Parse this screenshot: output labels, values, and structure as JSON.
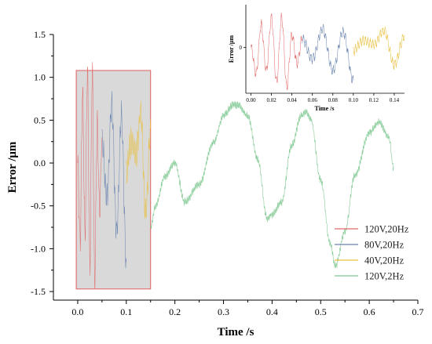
{
  "chart_data": [
    {
      "type": "line",
      "title": "",
      "xlabel": "Time  /s",
      "ylabel": "Error  /μm",
      "xlim": [
        -0.05,
        0.7
      ],
      "ylim": [
        -1.6,
        1.5
      ],
      "x_ticks": [
        0.0,
        0.1,
        0.2,
        0.3,
        0.4,
        0.5,
        0.6,
        0.7
      ],
      "x_tick_labels": [
        "0.0",
        "0.1",
        "0.2",
        "0.3",
        "0.4",
        "0.5",
        "0.6",
        "0.7"
      ],
      "y_ticks": [
        1.5,
        1.0,
        0.5,
        0.0,
        -0.5,
        -1.0,
        -1.5
      ],
      "y_tick_labels": [
        "1.5",
        "1.0",
        "0.5",
        "0.0",
        "-0.5",
        "-1.0",
        "-1.5"
      ],
      "grid": false,
      "legend_position": "bottom-right",
      "highlight_box": {
        "x_range": [
          -0.003,
          0.15
        ],
        "y_range": [
          -1.47,
          1.08
        ],
        "fill": "#d9d9d9",
        "stroke": "#e06060"
      },
      "series": [
        {
          "name": "120V,20Hz",
          "color": "#e06a6a",
          "x": [
            0.0,
            0.005,
            0.01,
            0.015,
            0.02,
            0.025,
            0.03,
            0.035,
            0.04,
            0.045,
            0.05
          ],
          "y": [
            0.0,
            -0.9,
            0.8,
            -0.8,
            1.05,
            -1.2,
            1.05,
            -1.35,
            0.45,
            -0.55,
            0.3
          ]
        },
        {
          "name": "80V,20Hz",
          "color": "#6a85b0",
          "x": [
            0.05,
            0.06,
            0.07,
            0.08,
            0.09,
            0.1
          ],
          "y": [
            0.3,
            -0.4,
            0.65,
            -0.8,
            0.55,
            -1.15
          ]
        },
        {
          "name": "40V,20Hz",
          "color": "#e8c040",
          "x": [
            0.1,
            0.11,
            0.12,
            0.13,
            0.14,
            0.15
          ],
          "y": [
            -0.1,
            0.25,
            0.1,
            0.6,
            -0.6,
            0.4
          ]
        },
        {
          "name": "120V,2Hz",
          "color": "#7ec890",
          "x": [
            0.15,
            0.16,
            0.18,
            0.2,
            0.22,
            0.25,
            0.28,
            0.3,
            0.32,
            0.33,
            0.35,
            0.37,
            0.39,
            0.4,
            0.42,
            0.44,
            0.46,
            0.47,
            0.48,
            0.5,
            0.52,
            0.53,
            0.55,
            0.57,
            0.6,
            0.62,
            0.64,
            0.65
          ],
          "y": [
            -0.75,
            -0.5,
            -0.15,
            0.0,
            -0.45,
            -0.25,
            0.25,
            0.55,
            0.68,
            0.68,
            0.55,
            0.05,
            -0.65,
            -0.6,
            -0.45,
            0.2,
            0.55,
            0.6,
            0.5,
            -0.2,
            -0.95,
            -1.2,
            -0.8,
            -0.15,
            0.35,
            0.48,
            0.3,
            -0.05
          ]
        }
      ]
    },
    {
      "type": "line",
      "title": "",
      "xlabel": "Time  /s",
      "ylabel": "Error  /μm",
      "xlim": [
        -0.005,
        0.15
      ],
      "ylim": [
        -1.6,
        1.5
      ],
      "x_ticks": [
        0.0,
        0.02,
        0.04,
        0.06,
        0.08,
        0.1,
        0.12,
        0.14
      ],
      "x_tick_labels": [
        "0.00",
        "0.02",
        "0.04",
        "0.06",
        "0.08",
        "0.10",
        "0.12",
        "0.14"
      ],
      "y_ticks": [
        0
      ],
      "y_tick_labels": [
        "0"
      ],
      "grid": false,
      "series": [
        {
          "color": "#e06a6a",
          "x": [
            0.0,
            0.005,
            0.01,
            0.015,
            0.02,
            0.025,
            0.03,
            0.035,
            0.04,
            0.045,
            0.05
          ],
          "y": [
            0.0,
            -0.9,
            0.8,
            -0.8,
            1.05,
            -1.2,
            1.05,
            -1.35,
            0.45,
            -0.55,
            0.3
          ]
        },
        {
          "color": "#6a85b0",
          "x": [
            0.05,
            0.06,
            0.07,
            0.08,
            0.09,
            0.1
          ],
          "y": [
            0.3,
            -0.4,
            0.65,
            -0.8,
            0.55,
            -1.15
          ]
        },
        {
          "color": "#e8c040",
          "x": [
            0.1,
            0.11,
            0.12,
            0.13,
            0.14,
            0.15
          ],
          "y": [
            -0.1,
            0.25,
            0.1,
            0.6,
            -0.6,
            0.4
          ]
        }
      ]
    }
  ]
}
